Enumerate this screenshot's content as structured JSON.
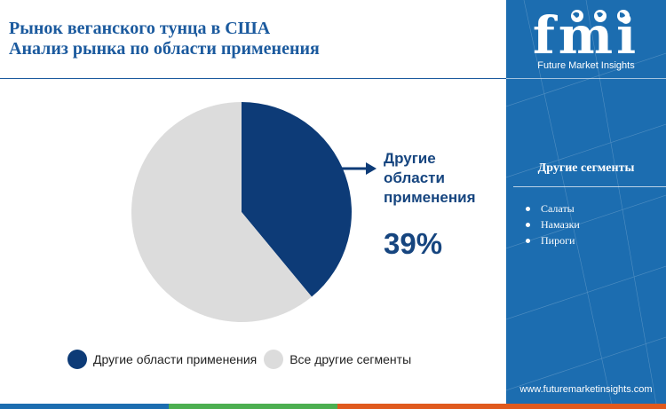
{
  "title": {
    "line1": "Рынок веганского тунца в США",
    "line2": "Анализ рынка по области применения"
  },
  "chart_data": {
    "type": "pie",
    "categories": [
      "Другие области применения",
      "Все другие сегменты"
    ],
    "values": [
      39,
      61
    ],
    "colors": [
      "#0d3b77",
      "#dcdcdc"
    ],
    "start_angle_deg": 0,
    "direction": "clockwise"
  },
  "callout": {
    "label": "Другие области применения",
    "value": "39%"
  },
  "legend": {
    "items": [
      {
        "label": "Другие области применения",
        "color": "#0d3b77"
      },
      {
        "label": "Все другие сегменты",
        "color": "#dcdcdc"
      }
    ]
  },
  "sidebar": {
    "logo_text": "fmi",
    "logo_subtitle": "Future Market Insights",
    "segments_title": "Другие сегменты",
    "segments": [
      "Салаты",
      "Намазки",
      "Пироги"
    ],
    "url": "www.futuremarketinsights.com",
    "background_color": "#1c6db0"
  },
  "bottom_bar_colors": [
    "#1c6db0",
    "#4caf50",
    "#e05a1e"
  ]
}
